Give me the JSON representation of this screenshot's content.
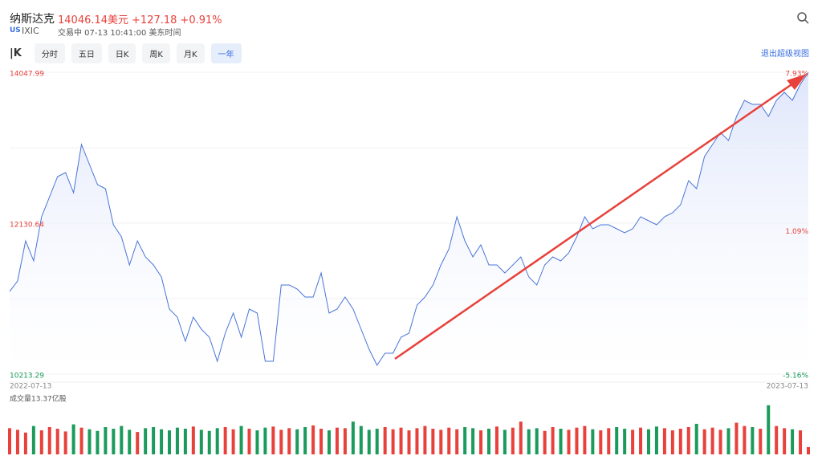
{
  "header": {
    "name": "纳斯达克",
    "price": "14046.14美元",
    "change": "+127.18",
    "change_pct": "+0.91%",
    "market": "US",
    "symbol": "IXIC",
    "status": "交易中 07-13 10:41:00 美东时间"
  },
  "tabs": [
    "分时",
    "五日",
    "日K",
    "周K",
    "月K",
    "一年"
  ],
  "exit_button": "退出超级视图",
  "chart_data": [
    {
      "type": "line",
      "series": [
        {
          "color": "#4a74d8",
          "values": [
            11263,
            11396,
            11906,
            11651,
            12212,
            12467,
            12722,
            12773,
            12518,
            13130,
            12875,
            12620,
            12569,
            12110,
            11957,
            11600,
            11906,
            11702,
            11600,
            11447,
            11039,
            10937,
            10631,
            10937,
            10784,
            10682,
            10376,
            10733,
            10988,
            10682,
            11039,
            10988,
            10376,
            10376,
            11345,
            11345,
            11294,
            11192,
            11192,
            11498,
            10988,
            11039,
            11192,
            11039,
            10784,
            10529,
            10325,
            10478,
            10478,
            10682,
            10733,
            11090,
            11192,
            11345,
            11600,
            11804,
            12212,
            11906,
            11702,
            11855,
            11600,
            11600,
            11498,
            11600,
            11702,
            11447,
            11345,
            11600,
            11702,
            11651,
            11753,
            11957,
            12212,
            12059,
            12110,
            12110,
            12059,
            12008,
            12059,
            12212,
            12161,
            12110,
            12212,
            12263,
            12365,
            12671,
            12569,
            12977,
            13130,
            13283,
            13181,
            13487,
            13691,
            13640,
            13640,
            13487,
            13691,
            13793,
            13691,
            13895,
            14046.14
          ]
        }
      ],
      "ylim": [
        10213.29,
        14047.99
      ],
      "yticks": [
        10213.29,
        12130.64,
        14047.99
      ],
      "y2lim": [
        -5.16,
        7.93
      ],
      "y2ticks": [
        {
          "value": -5.16,
          "label": "-5.16%"
        },
        {
          "value": 1.09,
          "label": "1.09%"
        },
        {
          "value": 7.93,
          "label": "7.93%"
        }
      ],
      "x_labels": [
        "2022-07-13",
        "2023-07-13"
      ],
      "up_color": "#e8413b",
      "down_color": "#1a9b5b"
    },
    {
      "type": "bar",
      "title": "成交量13.37亿股",
      "values": [
        48,
        45,
        40,
        52,
        44,
        50,
        47,
        42,
        55,
        49,
        46,
        43,
        50,
        47,
        52,
        45,
        41,
        48,
        50,
        46,
        44,
        49,
        47,
        51,
        45,
        43,
        48,
        50,
        46,
        52,
        47,
        44,
        49,
        51,
        45,
        48,
        46,
        50,
        53,
        47,
        44,
        49,
        48,
        60,
        52,
        45,
        47,
        50,
        46,
        49,
        44,
        48,
        52,
        47,
        45,
        49,
        46,
        50,
        48,
        44,
        47,
        51,
        45,
        49,
        60,
        46,
        48,
        43,
        50,
        47,
        45,
        49,
        52,
        46,
        44,
        48,
        50,
        47,
        45,
        49,
        46,
        51,
        48,
        44,
        47,
        50,
        56,
        46,
        49,
        45,
        48,
        58,
        52,
        50,
        47,
        90,
        52,
        48,
        46,
        44,
        13.37
      ],
      "ylim": [
        0,
        100
      ]
    }
  ]
}
